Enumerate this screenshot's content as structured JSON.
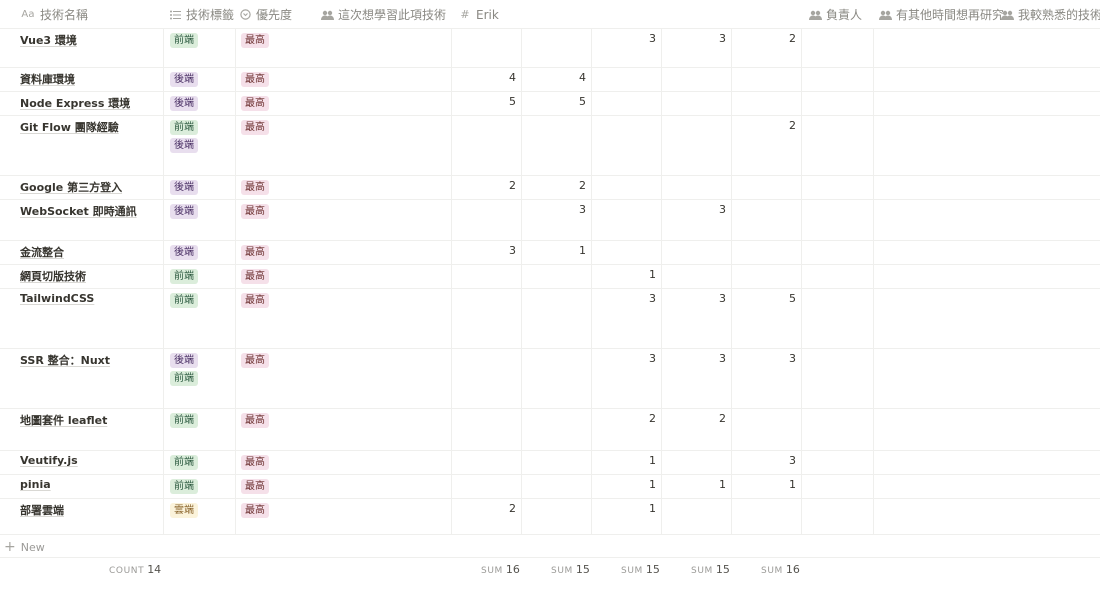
{
  "columns": [
    {
      "key": "name",
      "label": "技術名稱",
      "icon": "Aa"
    },
    {
      "key": "tags",
      "label": "技術標籤",
      "icon": "☰"
    },
    {
      "key": "priority",
      "label": "優先度",
      "icon": "◉"
    },
    {
      "key": "learn",
      "label": "這次想學習此項技術",
      "icon": "👥"
    },
    {
      "key": "erik",
      "label": "Erik",
      "icon": "#"
    },
    {
      "key": "owner",
      "label": "負責人",
      "icon": "👥"
    },
    {
      "key": "later",
      "label": "有其他時間想再研究",
      "icon": "👥"
    },
    {
      "key": "familiar",
      "label": "我較熟悉的技術",
      "icon": "👥"
    }
  ],
  "tag_colors": {
    "前端": {
      "bg": "#dbeddb",
      "fg": "#2b593f"
    },
    "後端": {
      "bg": "#e8deee",
      "fg": "#492f64"
    },
    "雲端": {
      "bg": "#fbf3db",
      "fg": "#89632a"
    },
    "最高": {
      "bg": "#f5e0e9",
      "fg": "#6b2e2e"
    }
  },
  "rows": [
    {
      "name": "Vue3 環境",
      "tags": [
        "前端"
      ],
      "priority": "最高",
      "nums": [
        "",
        "",
        "3",
        "3",
        "2"
      ]
    },
    {
      "name": "資料庫環境",
      "tags": [
        "後端"
      ],
      "priority": "最高",
      "nums": [
        "4",
        "4",
        "",
        "",
        ""
      ]
    },
    {
      "name": "Node Express 環境",
      "tags": [
        "後端"
      ],
      "priority": "最高",
      "nums": [
        "5",
        "5",
        "",
        "",
        ""
      ]
    },
    {
      "name": "Git Flow 團隊經驗",
      "tags": [
        "前端",
        "後端"
      ],
      "priority": "最高",
      "nums": [
        "",
        "",
        "",
        "",
        "2"
      ]
    },
    {
      "name": "Google 第三方登入",
      "tags": [
        "後端"
      ],
      "priority": "最高",
      "nums": [
        "2",
        "2",
        "",
        "",
        ""
      ]
    },
    {
      "name": "WebSocket 即時通訊",
      "tags": [
        "後端"
      ],
      "priority": "最高",
      "nums": [
        "",
        "3",
        "",
        "3",
        ""
      ]
    },
    {
      "name": "金流整合",
      "tags": [
        "後端"
      ],
      "priority": "最高",
      "nums": [
        "3",
        "1",
        "",
        "",
        ""
      ]
    },
    {
      "name": "網頁切版技術",
      "tags": [
        "前端"
      ],
      "priority": "最高",
      "nums": [
        "",
        "",
        "1",
        "",
        ""
      ]
    },
    {
      "name": "TailwindCSS",
      "tags": [
        "前端"
      ],
      "priority": "最高",
      "nums": [
        "",
        "",
        "3",
        "3",
        "5"
      ]
    },
    {
      "name": "SSR 整合：Nuxt",
      "tags": [
        "後端",
        "前端"
      ],
      "priority": "最高",
      "nums": [
        "",
        "",
        "3",
        "3",
        "3"
      ]
    },
    {
      "name": "地圖套件 leaflet",
      "tags": [
        "前端"
      ],
      "priority": "最高",
      "nums": [
        "",
        "",
        "2",
        "2",
        ""
      ]
    },
    {
      "name": "Veutify.js",
      "tags": [
        "前端"
      ],
      "priority": "最高",
      "nums": [
        "",
        "",
        "1",
        "",
        "3"
      ]
    },
    {
      "name": "pinia",
      "tags": [
        "前端"
      ],
      "priority": "最高",
      "nums": [
        "",
        "",
        "1",
        "1",
        "1"
      ]
    },
    {
      "name": "部署雲端",
      "tags": [
        "雲端"
      ],
      "priority": "最高",
      "nums": [
        "2",
        "",
        "1",
        "",
        ""
      ]
    }
  ],
  "new_label": "New",
  "footer": {
    "count_label": "COUNT",
    "count_value": "14",
    "sum_label": "SUM",
    "sums": [
      "16",
      "15",
      "15",
      "15",
      "16"
    ]
  }
}
